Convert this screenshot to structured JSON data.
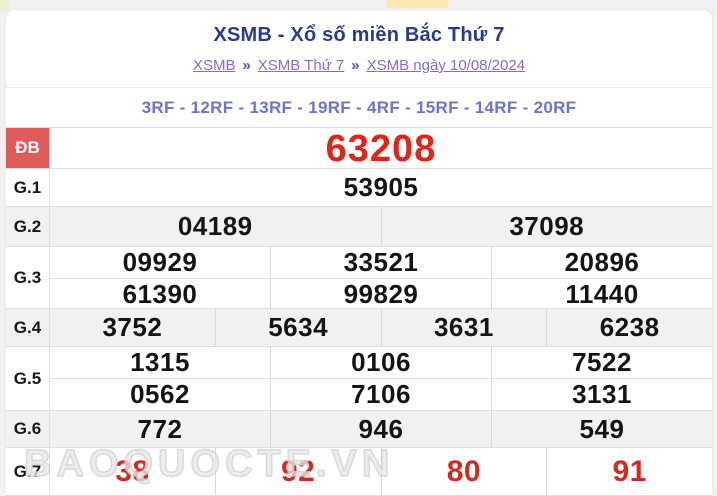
{
  "page": {
    "title": "XSMB - Xổ số miền Bắc Thứ 7",
    "breadcrumb": {
      "separator": "»",
      "items": [
        {
          "label": "XSMB"
        },
        {
          "label": "XSMB Thứ 7"
        },
        {
          "label": "XSMB ngày 10/08/2024"
        }
      ]
    },
    "codes_line": "3RF - 12RF - 13RF - 19RF - 4RF - 15RF - 14RF - 20RF",
    "watermark": "BAOQUOCTE.VN"
  },
  "colors": {
    "title_navy": "#2b3a8c",
    "breadcrumb_link": "#7a6ed2",
    "codes_purple": "#6f72cf",
    "prize_red": "#e2231a",
    "g7_red": "#d8281e",
    "special_label_bg": "#e05a57",
    "row_alt_bg": "#f1f1f1"
  },
  "results": {
    "rows": [
      {
        "label": "ĐB",
        "special": true,
        "alt": false,
        "value_style": "xl-red",
        "lines": [
          [
            "63208"
          ]
        ]
      },
      {
        "label": "G.1",
        "special": false,
        "alt": false,
        "value_style": "normal",
        "lines": [
          [
            "53905"
          ]
        ]
      },
      {
        "label": "G.2",
        "special": false,
        "alt": true,
        "value_style": "normal",
        "lines": [
          [
            "04189",
            "37098"
          ]
        ]
      },
      {
        "label": "G.3",
        "special": false,
        "alt": false,
        "value_style": "normal",
        "lines": [
          [
            "09929",
            "33521",
            "20896"
          ],
          [
            "61390",
            "99829",
            "11440"
          ]
        ]
      },
      {
        "label": "G.4",
        "special": false,
        "alt": true,
        "value_style": "normal",
        "lines": [
          [
            "3752",
            "5634",
            "3631",
            "6238"
          ]
        ]
      },
      {
        "label": "G.5",
        "special": false,
        "alt": false,
        "value_style": "normal",
        "lines": [
          [
            "1315",
            "0106",
            "7522"
          ],
          [
            "0562",
            "7106",
            "3131"
          ]
        ]
      },
      {
        "label": "G.6",
        "special": false,
        "alt": true,
        "value_style": "normal",
        "lines": [
          [
            "772",
            "946",
            "549"
          ]
        ]
      },
      {
        "label": "G.7",
        "special": false,
        "alt": false,
        "value_style": "lg-red",
        "lines": [
          [
            "38",
            "92",
            "80",
            "91"
          ]
        ]
      }
    ]
  }
}
